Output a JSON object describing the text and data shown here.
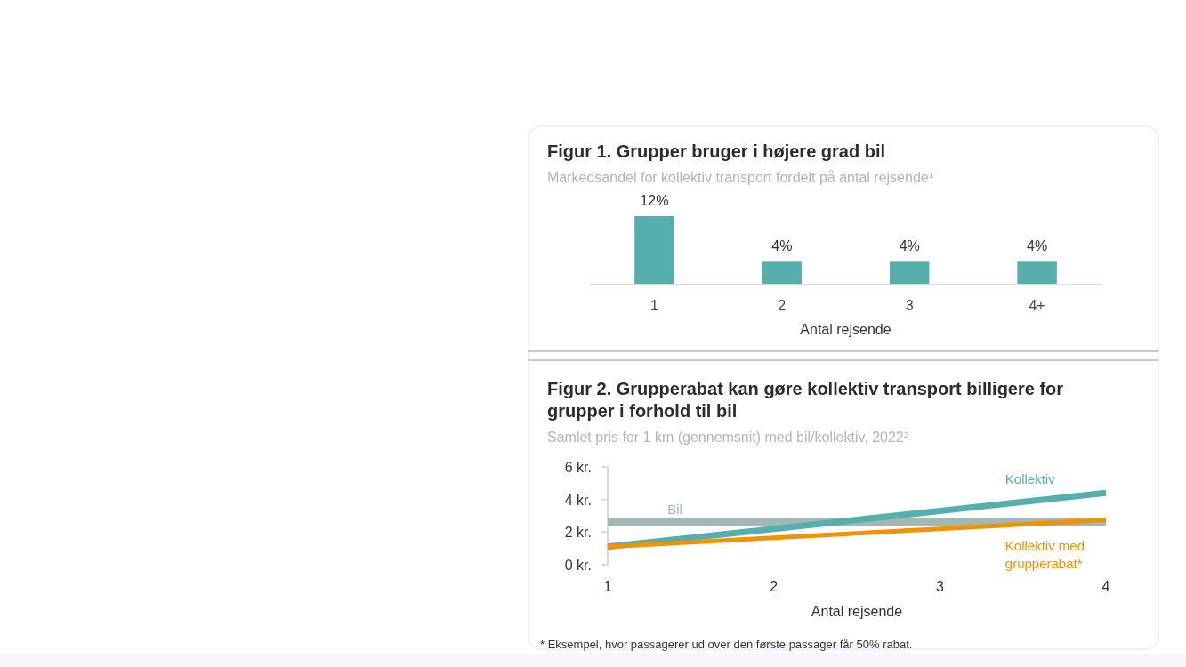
{
  "chart_data": [
    {
      "type": "bar",
      "title": "Figur 1. Grupper bruger i højere grad bil",
      "subtitle": "Markedsandel for kollektiv transport fordelt på antal rejsende$^{1}$",
      "xlabel": "Antal rejsende",
      "categories": [
        "1",
        "2",
        "3",
        "4+"
      ],
      "values": [
        12,
        4,
        4,
        4
      ],
      "value_labels": [
        "12%",
        "4%",
        "4%",
        "4%"
      ],
      "color": "#55afac"
    },
    {
      "type": "line",
      "title": "Figur 2. Grupperabat kan gøre kollektiv transport billigere for grupper i forhold til bil",
      "subtitle": "Samlet pris for 1 km (gennemsnit) med bil/kollektiv, 2022$^{2}$",
      "xlabel": "Antal rejsende",
      "x": [
        1,
        2,
        3,
        4
      ],
      "xlim": [
        1,
        4
      ],
      "xticks": [
        1,
        2,
        3,
        4
      ],
      "ylim": [
        0,
        6
      ],
      "yticks": [
        {
          "value": 0,
          "label": "0 kr."
        },
        {
          "value": 2,
          "label": "2 kr."
        },
        {
          "value": 4,
          "label": "4 kr."
        },
        {
          "value": 6,
          "label": "6 kr."
        }
      ],
      "series": [
        {
          "name": "Bil",
          "color": "#a3b7b7",
          "values": [
            2.6,
            2.6,
            2.6,
            2.6
          ]
        },
        {
          "name": "Kollektiv",
          "color": "#55afac",
          "values": [
            1.1,
            2.2,
            3.3,
            4.4
          ]
        },
        {
          "name": "Kollektiv med grupperabat*",
          "color": "#f39200",
          "values": [
            1.1,
            1.65,
            2.2,
            2.75
          ]
        }
      ],
      "annotations": [
        "* Eksempel, hvor passagerer ud over den første passager får 50% rabat."
      ]
    }
  ]
}
